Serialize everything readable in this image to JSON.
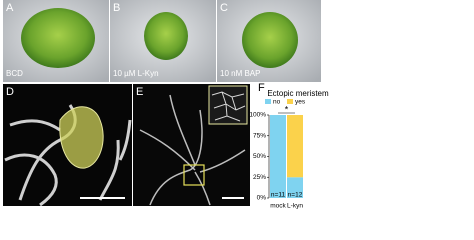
{
  "panels": [
    {
      "label": "A",
      "caption": "BCD"
    },
    {
      "label": "B",
      "caption": "10 µM L-Kyn"
    },
    {
      "label": "C",
      "caption": "10 nM BAP"
    },
    {
      "label": "D"
    },
    {
      "label": "E"
    },
    {
      "label": "F"
    }
  ],
  "chart_data": {
    "type": "stacked-bar",
    "title": "Ectopic meristem",
    "categories": [
      "mock",
      "L-kyn"
    ],
    "series": [
      {
        "name": "no",
        "color": "#7fd3f0",
        "values": [
          100,
          25
        ]
      },
      {
        "name": "yes",
        "color": "#fbd24b",
        "values": [
          0,
          75
        ]
      }
    ],
    "bar_annotations": [
      "n=11",
      "n=12"
    ],
    "significance": "*",
    "ylim": [
      0,
      100
    ],
    "yticks": [
      {
        "value": 0,
        "label": "0%"
      },
      {
        "value": 25,
        "label": "25%"
      },
      {
        "value": 50,
        "label": "50%"
      },
      {
        "value": 75,
        "label": "75%"
      },
      {
        "value": 100,
        "label": "100%"
      }
    ]
  }
}
